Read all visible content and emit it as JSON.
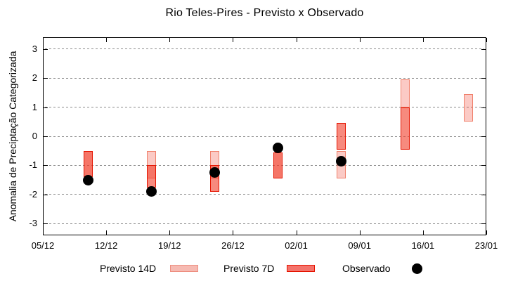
{
  "title": "Rio Teles-Pires - Previsto x Observado",
  "y_axis": {
    "label": "Anomalia de Preciptação Categorizada",
    "ticks": [
      "3",
      "2",
      "1",
      "0",
      "-1",
      "-2",
      "-3"
    ]
  },
  "x_axis": {
    "ticks": [
      "05/12",
      "12/12",
      "19/12",
      "26/12",
      "02/01",
      "09/01",
      "16/01",
      "23/01"
    ]
  },
  "legend": [
    {
      "label": "Previsto 14D",
      "marker": "light-pink-box",
      "color": "#f6bab2"
    },
    {
      "label": "Previsto 7D",
      "marker": "red-box",
      "color": "#f4736b"
    },
    {
      "label": "Observado",
      "marker": "black-dot",
      "color": "#000000"
    }
  ],
  "chart_data": {
    "type": "bar",
    "subtype": "range-bars-with-scatter-overlay",
    "title": "Rio Teles-Pires - Previsto x Observado",
    "xlabel": "",
    "ylabel": "Anomalia de Preciptação Categorizada",
    "ylim": [
      -3.4,
      3.4
    ],
    "y_ticks": [
      3,
      2,
      1,
      0,
      -1,
      -2,
      -3
    ],
    "x_range": [
      "05/12",
      "23/01"
    ],
    "x_tick_labels": [
      "05/12",
      "12/12",
      "19/12",
      "26/12",
      "02/01",
      "09/01",
      "16/01",
      "23/01"
    ],
    "grid": "horizontal-dashed-gray",
    "legend_position": "bottom-outside",
    "categories": [
      "10/12",
      "17/12",
      "24/12",
      "31/12",
      "07/01",
      "14/01",
      "21/01"
    ],
    "series": [
      {
        "name": "Previsto 14D",
        "type": "range-bar",
        "color": "#f6bab2",
        "ranges": [
          [
            -1.4,
            -0.5
          ],
          [
            -1.45,
            -0.5
          ],
          [
            -1.45,
            -0.5
          ],
          [
            -1.45,
            -0.55
          ],
          [
            -1.45,
            -0.5
          ],
          [
            1.0,
            1.95
          ],
          [
            0.5,
            1.45
          ]
        ]
      },
      {
        "name": "Previsto 7D",
        "type": "range-bar",
        "color": "#f4736b",
        "ranges": [
          [
            -1.4,
            -0.5
          ],
          [
            -1.75,
            -1.0
          ],
          [
            -1.9,
            -1.0
          ],
          [
            -1.45,
            -0.55
          ],
          [
            -0.45,
            0.45
          ],
          [
            -0.45,
            1.0
          ],
          null
        ]
      },
      {
        "name": "Observado",
        "type": "scatter",
        "color": "#000000",
        "values": [
          -1.5,
          -1.9,
          -1.25,
          -0.4,
          -0.85,
          null,
          null
        ]
      }
    ]
  }
}
